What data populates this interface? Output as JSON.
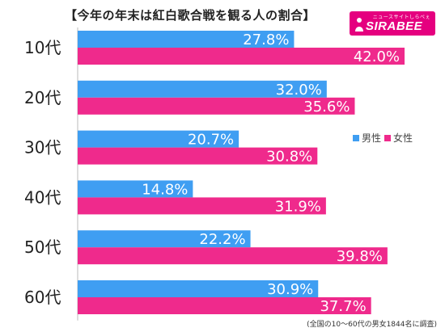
{
  "title": "【今年の年末は紅白歌合戦を観る人の割合】",
  "logo": {
    "small": "ニュースサイトしらべぇ",
    "big": "SIRABEE"
  },
  "note": "(全国の10～60代の男女1844名に調査)",
  "colors": {
    "male": "#3f9ef2",
    "female": "#ef2a8c",
    "axis": "#bbbbbb"
  },
  "chart_data": {
    "type": "bar",
    "orientation": "horizontal",
    "categories": [
      "10代",
      "20代",
      "30代",
      "40代",
      "50代",
      "60代"
    ],
    "series": [
      {
        "name": "男性",
        "values": [
          27.8,
          32.0,
          20.7,
          14.8,
          22.2,
          30.9
        ],
        "labels": [
          "27.8%",
          "32.0%",
          "20.7%",
          "14.8%",
          "22.2%",
          "30.9%"
        ]
      },
      {
        "name": "女性",
        "values": [
          42.0,
          35.6,
          30.8,
          31.9,
          39.8,
          37.7
        ],
        "labels": [
          "42.0%",
          "35.6%",
          "30.8%",
          "31.9%",
          "39.8%",
          "37.7%"
        ]
      }
    ],
    "xlim": [
      0,
      50
    ],
    "legend_position": "right"
  }
}
